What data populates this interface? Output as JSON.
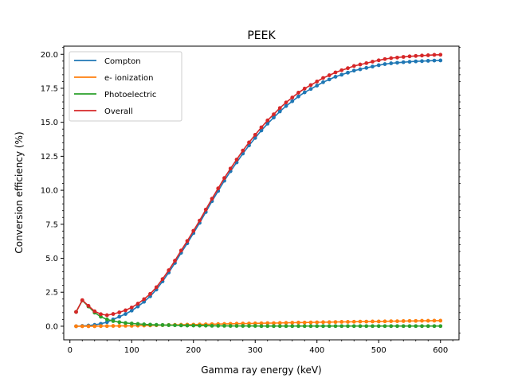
{
  "chart_data": {
    "type": "line",
    "title": "PEEK",
    "xlabel": "Gamma ray energy (keV)",
    "ylabel": "Conversion efficiency (%)",
    "xlim": [
      -10,
      630
    ],
    "ylim": [
      -1.0,
      20.6
    ],
    "xticks": [
      0,
      100,
      200,
      300,
      400,
      500,
      600
    ],
    "yticks": [
      0.0,
      2.5,
      5.0,
      7.5,
      10.0,
      12.5,
      15.0,
      17.5,
      20.0
    ],
    "xtick_labels": [
      "0",
      "100",
      "200",
      "300",
      "400",
      "500",
      "600"
    ],
    "ytick_labels": [
      "0.0",
      "2.5",
      "5.0",
      "7.5",
      "10.0",
      "12.5",
      "15.0",
      "17.5",
      "20.0"
    ],
    "grid": false,
    "legend_position": "top-left",
    "marker": "circle",
    "x": [
      10,
      20,
      30,
      40,
      50,
      60,
      70,
      80,
      90,
      100,
      110,
      120,
      130,
      140,
      150,
      160,
      170,
      180,
      190,
      200,
      210,
      220,
      230,
      240,
      250,
      260,
      270,
      280,
      290,
      300,
      310,
      320,
      330,
      340,
      350,
      360,
      370,
      380,
      390,
      400,
      410,
      420,
      430,
      440,
      450,
      460,
      470,
      480,
      490,
      500,
      510,
      520,
      530,
      540,
      550,
      560,
      570,
      580,
      590,
      600
    ],
    "series": [
      {
        "name": "Compton",
        "color": "#1f77b4",
        "values": [
          0.0,
          0.02,
          0.05,
          0.1,
          0.18,
          0.3,
          0.5,
          0.7,
          0.9,
          1.15,
          1.45,
          1.8,
          2.2,
          2.7,
          3.3,
          3.95,
          4.65,
          5.4,
          6.1,
          6.85,
          7.6,
          8.4,
          9.2,
          9.95,
          10.7,
          11.4,
          12.05,
          12.7,
          13.3,
          13.85,
          14.4,
          14.9,
          15.35,
          15.8,
          16.2,
          16.55,
          16.9,
          17.2,
          17.45,
          17.7,
          17.95,
          18.15,
          18.35,
          18.5,
          18.65,
          18.8,
          18.9,
          19.0,
          19.1,
          19.2,
          19.28,
          19.34,
          19.38,
          19.42,
          19.45,
          19.48,
          19.5,
          19.52,
          19.54,
          19.55
        ]
      },
      {
        "name": "e- ionization",
        "color": "#ff7f0e",
        "values": [
          0.0,
          0.0,
          0.0,
          0.0,
          0.01,
          0.01,
          0.02,
          0.02,
          0.03,
          0.03,
          0.04,
          0.05,
          0.06,
          0.07,
          0.08,
          0.09,
          0.1,
          0.11,
          0.12,
          0.12,
          0.13,
          0.14,
          0.15,
          0.16,
          0.17,
          0.18,
          0.19,
          0.2,
          0.2,
          0.21,
          0.22,
          0.23,
          0.23,
          0.24,
          0.25,
          0.26,
          0.27,
          0.27,
          0.28,
          0.29,
          0.3,
          0.3,
          0.31,
          0.32,
          0.32,
          0.33,
          0.34,
          0.34,
          0.35,
          0.35,
          0.36,
          0.37,
          0.37,
          0.38,
          0.39,
          0.39,
          0.4,
          0.4,
          0.41,
          0.41
        ]
      },
      {
        "name": "Photoelectric",
        "color": "#2ca02c",
        "values": [
          1.05,
          1.9,
          1.45,
          1.0,
          0.7,
          0.5,
          0.38,
          0.3,
          0.24,
          0.2,
          0.17,
          0.14,
          0.12,
          0.1,
          0.09,
          0.08,
          0.07,
          0.06,
          0.05,
          0.05,
          0.04,
          0.04,
          0.03,
          0.03,
          0.03,
          0.02,
          0.02,
          0.02,
          0.02,
          0.02,
          0.01,
          0.01,
          0.01,
          0.01,
          0.01,
          0.01,
          0.01,
          0.01,
          0.01,
          0.01,
          0.01,
          0.01,
          0.01,
          0.01,
          0.01,
          0.01,
          0.01,
          0.01,
          0.01,
          0.01,
          0.01,
          0.01,
          0.01,
          0.01,
          0.01,
          0.01,
          0.01,
          0.01,
          0.01,
          0.01
        ]
      },
      {
        "name": "Overall",
        "color": "#d62728",
        "values": [
          1.05,
          1.92,
          1.5,
          1.1,
          0.89,
          0.81,
          0.9,
          1.02,
          1.17,
          1.38,
          1.66,
          1.99,
          2.38,
          2.87,
          3.47,
          4.12,
          4.82,
          5.57,
          6.27,
          7.02,
          7.77,
          8.58,
          9.38,
          10.14,
          10.9,
          11.6,
          12.26,
          12.92,
          13.52,
          14.08,
          14.63,
          15.14,
          15.59,
          16.05,
          16.46,
          16.82,
          17.18,
          17.48,
          17.74,
          18.0,
          18.26,
          18.46,
          18.67,
          18.83,
          18.98,
          19.14,
          19.25,
          19.35,
          19.46,
          19.56,
          19.65,
          19.72,
          19.76,
          19.81,
          19.85,
          19.88,
          19.91,
          19.93,
          19.96,
          19.97
        ]
      }
    ]
  }
}
